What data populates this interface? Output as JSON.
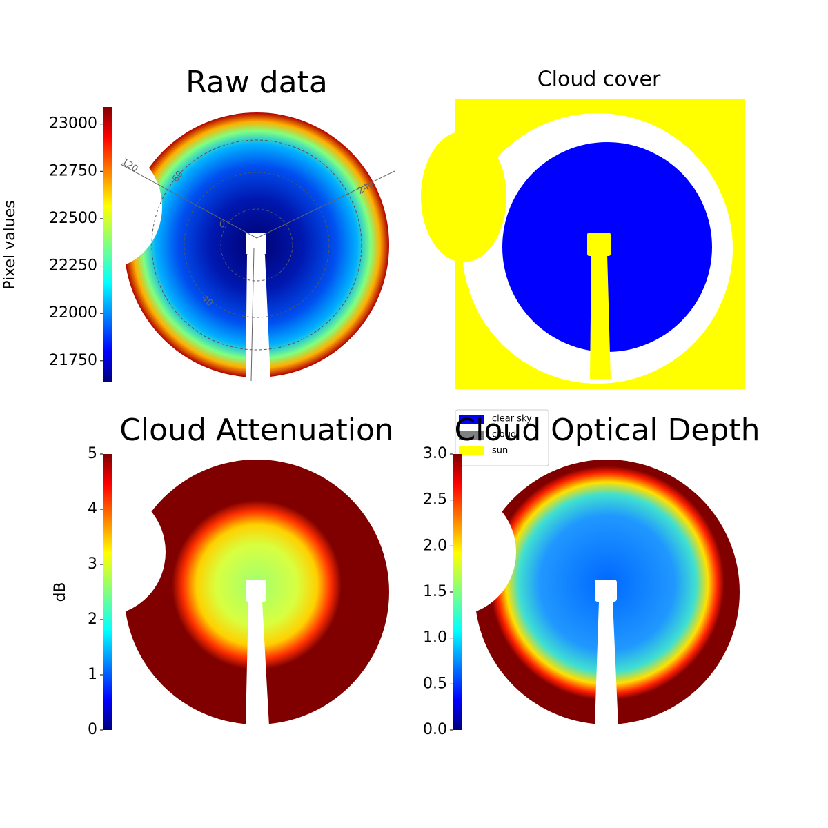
{
  "chart_data": [
    {
      "type": "image",
      "title": "Raw data",
      "colorbar": {
        "label": "Pixel values",
        "colormap": "jet",
        "ylim": [
          21640,
          23090
        ],
        "yticks": [
          21750,
          22000,
          22250,
          22500,
          22750,
          23000
        ]
      },
      "annotations": [
        "120",
        "60",
        "240",
        "0",
        "40"
      ]
    },
    {
      "type": "image",
      "title": "Cloud cover",
      "legend": {
        "position": "lower left",
        "entries": [
          {
            "name": "clear sky",
            "color": "#0000ff"
          },
          {
            "name": "cloud",
            "color": "#808080"
          },
          {
            "name": "sun",
            "color": "#ffff00"
          }
        ]
      }
    },
    {
      "type": "image",
      "title": "Cloud Attenuation",
      "colorbar": {
        "label": "dB",
        "colormap": "jet",
        "ylim": [
          0,
          5
        ],
        "yticks": [
          0,
          1,
          2,
          3,
          4,
          5
        ]
      }
    },
    {
      "type": "image",
      "title": "Cloud Optical Depth",
      "colorbar": {
        "colormap": "jet",
        "ylim": [
          0,
          3
        ],
        "yticks": [
          {
            "value": 0,
            "label": "0.0"
          },
          {
            "value": 0.5,
            "label": "0.5"
          },
          {
            "value": 1,
            "label": "1.0"
          },
          {
            "value": 1.5,
            "label": "1.5"
          },
          {
            "value": 2,
            "label": "2.0"
          },
          {
            "value": 2.5,
            "label": "2.5"
          },
          {
            "value": 3,
            "label": "3.0"
          }
        ]
      }
    }
  ]
}
